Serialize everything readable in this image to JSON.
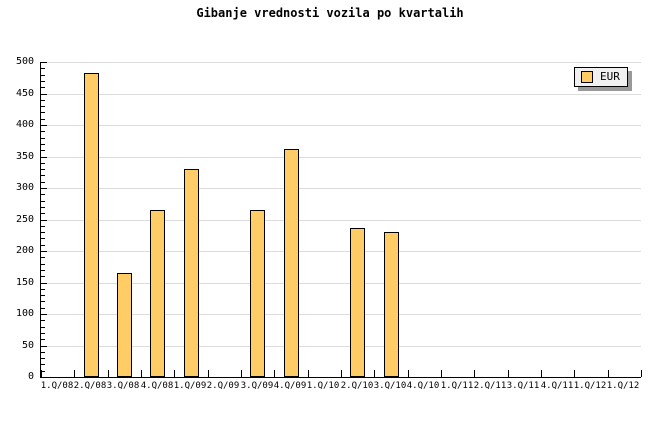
{
  "title": "Gibanje vrednosti vozila po kvartalih",
  "legend": {
    "label": "EUR"
  },
  "chart_data": {
    "type": "bar",
    "title": "Gibanje vrednosti vozila po kvartalih",
    "categories": [
      "1.Q/08",
      "2.Q/08",
      "3.Q/08",
      "4.Q/08",
      "1.Q/09",
      "2.Q/09",
      "3.Q/09",
      "4.Q/09",
      "1.Q/10",
      "2.Q/10",
      "3.Q/10",
      "4.Q/10",
      "1.Q/11",
      "2.Q/11",
      "3.Q/11",
      "4.Q/11",
      "1.Q/12",
      "1.Q/12"
    ],
    "series": [
      {
        "name": "EUR",
        "values": [
          null,
          482,
          165,
          265,
          330,
          null,
          265,
          362,
          null,
          237,
          230,
          null,
          null,
          null,
          null,
          null,
          null,
          null
        ]
      }
    ],
    "y_ticks": [
      0,
      50,
      100,
      150,
      200,
      250,
      300,
      350,
      400,
      450,
      500
    ],
    "ylim": [
      0,
      500
    ],
    "y_tick_step": 50,
    "y_minor_tick_step": 10,
    "grid": true,
    "xlabel": "",
    "ylabel": "",
    "legend_position": "top-right",
    "colors": {
      "bar_fill": "#FFCC66",
      "bar_border": "#000000",
      "grid": "#DCDCDC",
      "axis": "#000000",
      "legend_bg": "#F0F0F0",
      "legend_shadow": "#999999",
      "background": "#FFFFFF"
    }
  }
}
